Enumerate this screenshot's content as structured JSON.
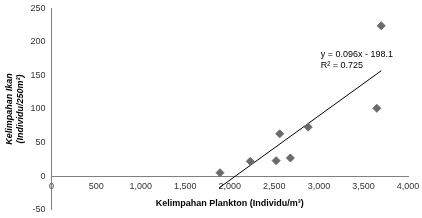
{
  "chart_data": {
    "type": "scatter",
    "x_label": "Kelimpahan Plankton (Individu/m³)",
    "y_label": [
      "Kelimpahan Ikan",
      "(Individu/250m²)"
    ],
    "xlim": [
      0,
      4000
    ],
    "xticks": [
      0,
      500,
      1000,
      1500,
      2000,
      2500,
      3000,
      3500,
      4000
    ],
    "ylim": [
      -50,
      250
    ],
    "yticks": [
      -50,
      0,
      50,
      100,
      150,
      200,
      250
    ],
    "grid": false,
    "series": [
      {
        "type": "scatter",
        "marker": "diamond",
        "color": "#6b6b6b",
        "x": [
          1890,
          2230,
          2520,
          2560,
          2680,
          2880,
          3650,
          3700
        ],
        "values": [
          5,
          22,
          23,
          63,
          27,
          73,
          101,
          224
        ]
      },
      {
        "type": "line",
        "line_style": "solid",
        "color": "#000000",
        "x": [
          1880,
          3700
        ],
        "values": [
          -17.6,
          157.1
        ]
      }
    ],
    "annotations": [
      "y = 0.096x - 198.1",
      "R² = 0.725"
    ]
  }
}
